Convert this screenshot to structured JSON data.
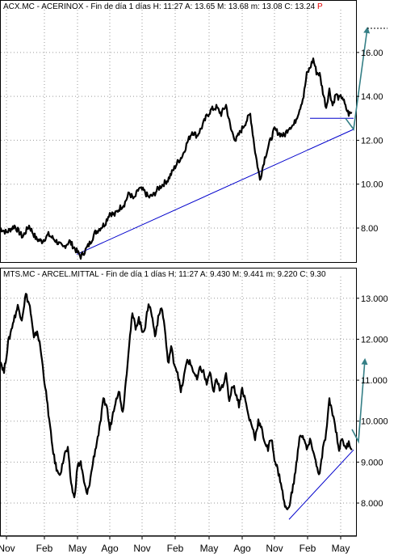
{
  "chart_data": [
    {
      "type": "line",
      "title": "ACX.MC - ACERINOX - Fin de día 1 días",
      "stats": {
        "H_label": "H:",
        "H": "11:27",
        "A_label": "A:",
        "A": "13.65",
        "M_label": "M:",
        "M": "13.68",
        "m_label": "m:",
        "m": "13.08",
        "C_label": "C:",
        "C": "13.24"
      },
      "flag": "P",
      "ylim": [
        6.6,
        17.8
      ],
      "yticks": [
        "16.00",
        "14.00",
        "12.00",
        "10.00",
        "8.00"
      ],
      "ytick_values": [
        16,
        14,
        12,
        10,
        8
      ],
      "grid": true,
      "series": [
        {
          "color": "#000000",
          "x": [
            0,
            8,
            18,
            28,
            36,
            45,
            52,
            60,
            70,
            78,
            86,
            94,
            100,
            106,
            111,
            118,
            124,
            130,
            136,
            142,
            148,
            154,
            160,
            166,
            172,
            178,
            184,
            190,
            196,
            202,
            208,
            214,
            220,
            226,
            232,
            238,
            244,
            250,
            256,
            262,
            268,
            274,
            280,
            286,
            292,
            298,
            304,
            310,
            316,
            322,
            328,
            334,
            340,
            346,
            352,
            358,
            364,
            370,
            376,
            380,
            384,
            388,
            392,
            396,
            400,
            404,
            408,
            412,
            416,
            420,
            424,
            428,
            432,
            436
          ],
          "values": [
            8.0,
            7.8,
            8.1,
            7.6,
            8.1,
            7.5,
            7.4,
            7.7,
            7.4,
            7.1,
            7.4,
            7.0,
            6.7,
            7.0,
            7.3,
            7.8,
            8.0,
            8.2,
            8.7,
            8.6,
            8.9,
            9.1,
            9.6,
            9.3,
            9.8,
            9.7,
            9.4,
            9.5,
            9.8,
            10.0,
            10.2,
            10.6,
            11.0,
            11.3,
            11.9,
            12.4,
            12.2,
            12.6,
            13.1,
            13.4,
            13.5,
            13.2,
            13.6,
            12.5,
            12.0,
            12.4,
            12.8,
            13.2,
            11.5,
            10.2,
            11.2,
            11.9,
            12.5,
            12.3,
            12.2,
            12.6,
            12.7,
            13.3,
            14.0,
            15.0,
            15.3,
            15.7,
            15.1,
            15.0,
            14.2,
            13.5,
            14.3,
            13.6,
            14.1,
            13.9,
            14.0,
            13.5,
            13.2,
            13.24
          ]
        }
      ],
      "trendline_color": "#0000cc",
      "projection_color": "#357f86",
      "trendline": [
        [
          95,
          6.8
        ],
        [
          438,
          12.5
        ]
      ],
      "support_line": [
        [
          384,
          13.0
        ],
        [
          438,
          13.0
        ]
      ],
      "projection": [
        [
          428,
          13.0
        ],
        [
          438,
          12.5
        ],
        [
          455,
          17.1
        ]
      ],
      "projection_dashed": [
        [
          455,
          17.1
        ],
        [
          480,
          17.1
        ]
      ]
    },
    {
      "type": "line",
      "title": "MTS.MC - ARCEL.MITTAL - Fin de día 1 días",
      "stats": {
        "H_label": "H:",
        "H": "11:27",
        "A_label": "A:",
        "A": "9.430",
        "M_label": "M:",
        "M": "9.441",
        "m_label": "m:",
        "m": "9.220",
        "C_label": "C:",
        "C": "9.30"
      },
      "ylim": [
        7.25,
        13.45
      ],
      "yticks": [
        "13.000",
        "12.000",
        "11.000",
        "10.000",
        "9.000",
        "8.000"
      ],
      "ytick_values": [
        13,
        12,
        11,
        10,
        9,
        8
      ],
      "grid": true,
      "series": [
        {
          "color": "#000000",
          "x": [
            0,
            5,
            10,
            16,
            22,
            27,
            32,
            37,
            42,
            46,
            50,
            55,
            60,
            64,
            68,
            72,
            76,
            80,
            84,
            88,
            92,
            96,
            100,
            104,
            108,
            112,
            116,
            120,
            124,
            128,
            132,
            136,
            140,
            144,
            148,
            152,
            156,
            160,
            164,
            168,
            172,
            176,
            180,
            184,
            188,
            192,
            196,
            200,
            204,
            208,
            212,
            216,
            220,
            224,
            228,
            232,
            236,
            240,
            244,
            248,
            252,
            256,
            260,
            264,
            268,
            272,
            276,
            280,
            284,
            288,
            292,
            296,
            300,
            304,
            308,
            312,
            316,
            320,
            324,
            328,
            332,
            336,
            340,
            344,
            348,
            352,
            356,
            360,
            364,
            368,
            372,
            376,
            380,
            384,
            388,
            392,
            396,
            400,
            404,
            408,
            412,
            416,
            420,
            424,
            428,
            432,
            436
          ],
          "values": [
            11.5,
            11.2,
            11.9,
            12.4,
            12.8,
            12.5,
            13.1,
            12.8,
            12.0,
            12.2,
            11.8,
            11.0,
            10.2,
            9.5,
            9.0,
            8.7,
            8.8,
            9.2,
            9.3,
            8.5,
            8.1,
            8.9,
            9.0,
            8.5,
            8.2,
            8.6,
            9.1,
            9.5,
            9.9,
            10.5,
            10.4,
            9.8,
            10.2,
            10.6,
            10.7,
            10.2,
            11.0,
            11.9,
            12.6,
            12.3,
            12.5,
            12.2,
            12.3,
            12.9,
            12.6,
            12.1,
            12.5,
            12.8,
            12.3,
            11.4,
            11.8,
            11.4,
            11.2,
            10.7,
            11.1,
            11.5,
            11.4,
            11.2,
            11.0,
            11.3,
            11.2,
            10.9,
            11.2,
            10.7,
            11.0,
            10.8,
            10.9,
            11.1,
            10.5,
            10.9,
            10.7,
            10.4,
            10.8,
            10.5,
            10.1,
            9.9,
            9.6,
            10.0,
            9.8,
            9.5,
            9.3,
            9.6,
            9.1,
            8.8,
            8.5,
            8.0,
            7.8,
            8.1,
            8.5,
            9.1,
            9.7,
            9.6,
            9.3,
            9.5,
            9.3,
            8.9,
            8.7,
            9.3,
            9.7,
            10.5,
            10.2,
            9.8,
            9.3,
            9.6,
            9.3,
            9.5,
            9.3
          ]
        }
      ],
      "trendline_color": "#0000cc",
      "projection_color": "#357f86",
      "trendline": [
        [
          358,
          7.6
        ],
        [
          438,
          9.3
        ]
      ],
      "projection": [
        [
          436,
          9.8
        ],
        [
          444,
          9.5
        ],
        [
          452,
          11.5
        ]
      ]
    }
  ],
  "x_axis": {
    "ticks": [
      "Nov",
      "Feb",
      "May",
      "Ago",
      "Nov",
      "Feb",
      "May",
      "Ago",
      "Nov",
      "Feb",
      "May"
    ],
    "tick_x": [
      8,
      55,
      96,
      136,
      176,
      217,
      259,
      300,
      340,
      381,
      422
    ]
  }
}
